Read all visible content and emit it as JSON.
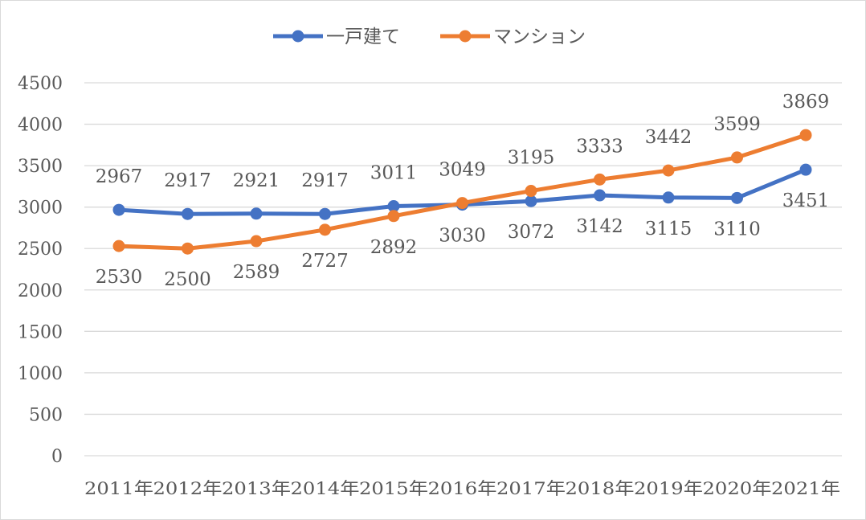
{
  "chart_data": {
    "type": "line",
    "title": "",
    "xlabel": "",
    "ylabel": "",
    "categories": [
      "2011年",
      "2012年",
      "2013年",
      "2014年",
      "2015年",
      "2016年",
      "2017年",
      "2018年",
      "2019年",
      "2020年",
      "2021年"
    ],
    "ylim": [
      0,
      4500
    ],
    "yticks": [
      0,
      500,
      1000,
      1500,
      2000,
      2500,
      3000,
      3500,
      4000,
      4500
    ],
    "grid": true,
    "legend_position": "top",
    "series": [
      {
        "name": "一戸建て",
        "color": "#4472c4",
        "values": [
          2967,
          2917,
          2921,
          2917,
          3011,
          3030,
          3072,
          3142,
          3115,
          3110,
          3451
        ]
      },
      {
        "name": "マンション",
        "color": "#ed7d31",
        "values": [
          2530,
          2500,
          2589,
          2727,
          2892,
          3049,
          3195,
          3333,
          3442,
          3599,
          3869
        ]
      }
    ]
  }
}
